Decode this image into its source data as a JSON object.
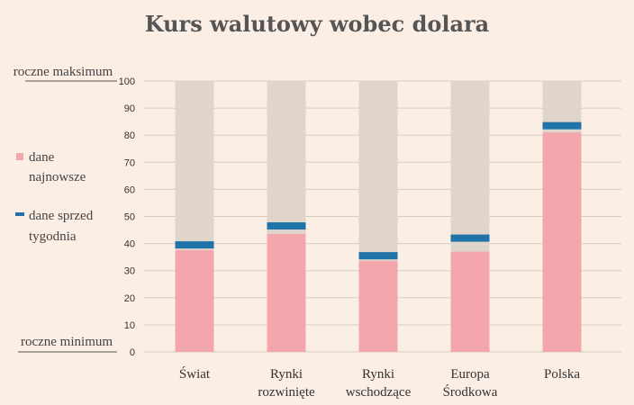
{
  "chart_data": {
    "type": "bar",
    "title": "Kurs walutowy wobec dolara",
    "ylim": [
      0,
      100
    ],
    "yticks": [
      0,
      10,
      20,
      30,
      40,
      50,
      60,
      70,
      80,
      90,
      100
    ],
    "top_label": "roczne maksimum",
    "bottom_label": "roczne minimum",
    "categories": [
      {
        "lines": [
          "Świat"
        ]
      },
      {
        "lines": [
          "Rynki",
          "rozwinięte"
        ]
      },
      {
        "lines": [
          "Rynki",
          "wschodzące"
        ]
      },
      {
        "lines": [
          "Europa",
          "Środkowa"
        ]
      },
      {
        "lines": [
          "Polska"
        ]
      }
    ],
    "series": [
      {
        "name": "dane najnowsze",
        "lines": [
          "dane",
          "najnowsze"
        ],
        "color": "#f4a6ad",
        "values": [
          37.5,
          43.5,
          33.5,
          37,
          81
        ]
      },
      {
        "name": "dane sprzed tygodnia",
        "lines": [
          "dane sprzed",
          "tygodnia"
        ],
        "color": "#1f73a8",
        "values": [
          39.5,
          46.5,
          35.5,
          42,
          83.5
        ]
      }
    ],
    "range_color": "#e0d5cb",
    "grid": true
  }
}
